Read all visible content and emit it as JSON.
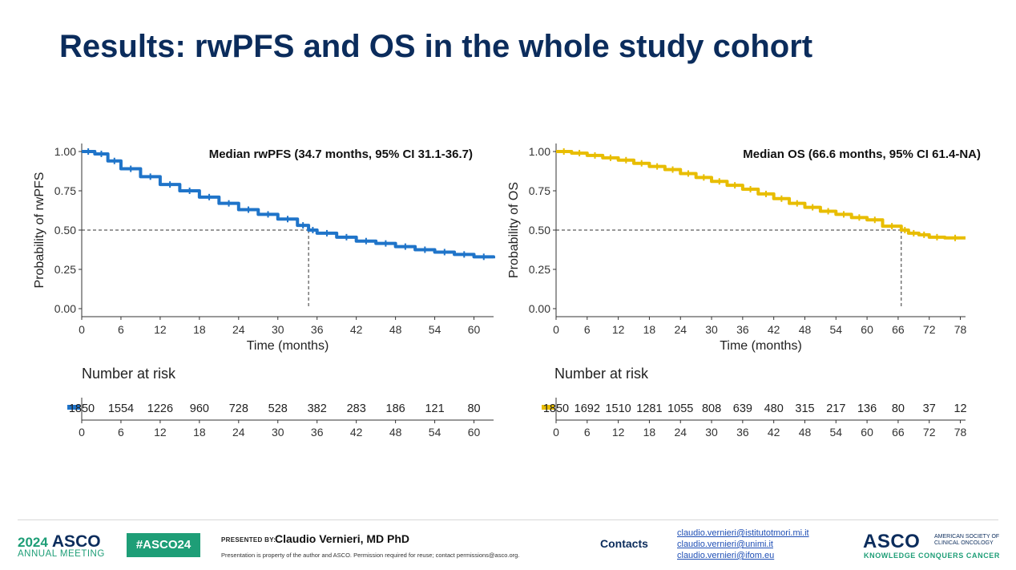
{
  "slide": {
    "title": "Results: rwPFS and OS in the whole study cohort"
  },
  "chart_data": [
    {
      "type": "line",
      "subtype": "kaplan-meier",
      "annotation": "Median rwPFS (34.7 months, 95% CI 31.1-36.7)",
      "median": 34.7,
      "xlabel": "Time (months)",
      "ylabel": "Probability of rwPFS",
      "xlim": [
        0,
        63
      ],
      "ylim": [
        0,
        1
      ],
      "x_ticks": [
        0,
        6,
        12,
        18,
        24,
        30,
        36,
        42,
        48,
        54,
        60
      ],
      "x_tick_labels": [
        "0",
        "6",
        "12",
        "18",
        "24",
        "30",
        "36",
        "42",
        "48",
        "54",
        "60"
      ],
      "y_ticks": [
        0,
        0.25,
        0.5,
        0.75,
        1.0
      ],
      "y_tick_labels": [
        "0.00",
        "0.25",
        "0.50",
        "0.75",
        "1.00"
      ],
      "color": "#1f74c9",
      "series": [
        {
          "name": "rwPFS",
          "x": [
            0,
            2,
            4,
            6,
            9,
            12,
            15,
            18,
            21,
            24,
            27,
            30,
            33,
            34.7,
            36,
            39,
            42,
            45,
            48,
            51,
            54,
            57,
            60,
            63
          ],
          "y": [
            1.0,
            0.985,
            0.94,
            0.89,
            0.84,
            0.79,
            0.75,
            0.71,
            0.67,
            0.63,
            0.6,
            0.57,
            0.53,
            0.5,
            0.48,
            0.455,
            0.43,
            0.415,
            0.395,
            0.375,
            0.36,
            0.345,
            0.33,
            0.32
          ]
        }
      ],
      "risk_table": {
        "title": "Number at risk",
        "times": [
          "0",
          "6",
          "12",
          "18",
          "24",
          "30",
          "36",
          "42",
          "48",
          "54",
          "60"
        ],
        "counts": [
          "1850",
          "1554",
          "1226",
          "960",
          "728",
          "528",
          "382",
          "283",
          "186",
          "121",
          "80"
        ]
      }
    },
    {
      "type": "line",
      "subtype": "kaplan-meier",
      "annotation": "Median OS (66.6 months, 95% CI 61.4-NA)",
      "median": 66.6,
      "xlabel": "Time (months)",
      "ylabel": "Probability of OS",
      "xlim": [
        0,
        79
      ],
      "ylim": [
        0,
        1
      ],
      "x_ticks": [
        0,
        6,
        12,
        18,
        24,
        30,
        36,
        42,
        48,
        54,
        60,
        66,
        72,
        78
      ],
      "x_tick_labels": [
        "0",
        "6",
        "12",
        "18",
        "24",
        "30",
        "36",
        "42",
        "48",
        "54",
        "60",
        "66",
        "72",
        "78"
      ],
      "y_ticks": [
        0,
        0.25,
        0.5,
        0.75,
        1.0
      ],
      "y_tick_labels": [
        "0.00",
        "0.25",
        "0.50",
        "0.75",
        "1.00"
      ],
      "color": "#e8bd00",
      "series": [
        {
          "name": "OS",
          "x": [
            0,
            3,
            6,
            9,
            12,
            15,
            18,
            21,
            24,
            27,
            30,
            33,
            36,
            39,
            42,
            45,
            48,
            51,
            54,
            57,
            60,
            63,
            66.6,
            68,
            70,
            72,
            75,
            79
          ],
          "y": [
            1.0,
            0.99,
            0.975,
            0.96,
            0.945,
            0.925,
            0.905,
            0.885,
            0.86,
            0.835,
            0.81,
            0.785,
            0.76,
            0.73,
            0.7,
            0.67,
            0.645,
            0.62,
            0.6,
            0.58,
            0.565,
            0.525,
            0.5,
            0.48,
            0.47,
            0.455,
            0.45,
            0.45
          ]
        }
      ],
      "risk_table": {
        "title": "Number at risk",
        "times": [
          "0",
          "6",
          "12",
          "18",
          "24",
          "30",
          "36",
          "42",
          "48",
          "54",
          "60",
          "66",
          "72",
          "78"
        ],
        "counts": [
          "1850",
          "1692",
          "1510",
          "1281",
          "1055",
          "808",
          "639",
          "480",
          "315",
          "217",
          "136",
          "80",
          "37",
          "12"
        ]
      }
    }
  ],
  "footer": {
    "meeting_year": "2024",
    "meeting_org": "ASCO",
    "meeting_name": "ANNUAL MEETING",
    "hashtag": "#ASCO24",
    "presented_by_label": "PRESENTED BY:",
    "presenter": "Claudio  Vernieri,  MD PhD",
    "disclaimer": "Presentation is property of the author and ASCO. Permission required for reuse; contact permissions@asco.org.",
    "contacts_label": "Contacts",
    "emails": [
      "claudio.vernieri@istitutotmori.mi.it",
      "claudio.vernieri@unimi.it",
      "claudio.vernieri@ifom.eu"
    ],
    "asco_logo": "ASCO",
    "asco_society": "AMERICAN SOCIETY OF CLINICAL ONCOLOGY",
    "asco_slogan": "KNOWLEDGE CONQUERS CANCER"
  }
}
